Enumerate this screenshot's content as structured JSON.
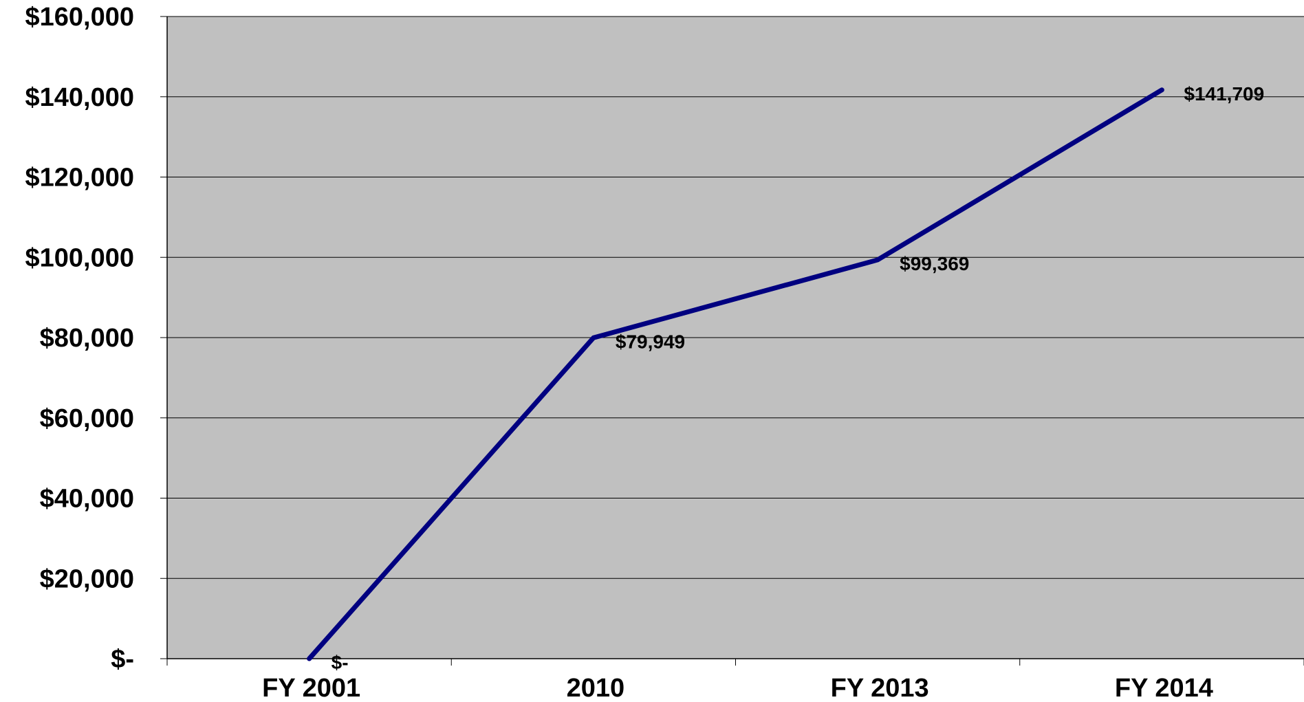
{
  "chart_data": {
    "type": "line",
    "categories": [
      "FY 2001",
      "2010",
      "FY 2013",
      "FY 2014"
    ],
    "series": [
      {
        "values": [
          0,
          79949,
          99369,
          141709
        ],
        "data_labels": [
          "$-",
          "$79,949",
          "$99,369",
          "$141,709"
        ]
      }
    ],
    "y_tick_labels": [
      "$-",
      "$20,000",
      "$40,000",
      "$60,000",
      "$80,000",
      "$100,000",
      "$120,000",
      "$140,000",
      "$160,000"
    ],
    "ylim": [
      0,
      160000
    ],
    "y_tick_step": 20000,
    "grid": true,
    "legend": "none",
    "colors": {
      "plot_background": "#c0c0c0",
      "line": "#000080",
      "gridline": "#000000",
      "page_background": "#ffffff"
    }
  }
}
